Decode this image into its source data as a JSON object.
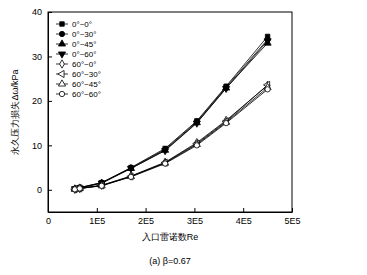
{
  "chart_data": {
    "type": "line",
    "title": "(a) β=0.67",
    "x_label": "入口雷诺数Re",
    "y_label": "永久压力损失Δω/kPa",
    "x": [
      55000,
      65000,
      110000,
      170000,
      240000,
      305000,
      365000,
      450000
    ],
    "xlim": [
      0,
      500000
    ],
    "xticks": [
      0,
      {
        "value": 100000,
        "label": "1E5"
      },
      {
        "value": 200000,
        "label": "2E5"
      },
      {
        "value": 300000,
        "label": "3E5"
      },
      {
        "value": 400000,
        "label": "4E5"
      },
      {
        "value": 500000,
        "label": "5E5"
      }
    ],
    "ylim": [
      -5,
      40
    ],
    "yticks": [
      0,
      10,
      20,
      30,
      40
    ],
    "grid": false,
    "legend": "upper left",
    "series": [
      {
        "name": "0°~0°",
        "color": "#000000",
        "marker": "filled-square",
        "values": [
          0.2,
          0.5,
          1.6,
          5.0,
          9.3,
          15.5,
          23.3,
          34.5
        ]
      },
      {
        "name": "0°~30°",
        "color": "#000000",
        "marker": "filled-circle",
        "values": [
          0.2,
          0.5,
          1.6,
          4.9,
          9.1,
          15.3,
          23.1,
          33.8
        ]
      },
      {
        "name": "0°~45°",
        "color": "#000000",
        "marker": "filled-triangle-up",
        "values": [
          0.2,
          0.4,
          1.5,
          4.8,
          8.9,
          15.1,
          22.9,
          33.0
        ]
      },
      {
        "name": "0°~60°",
        "color": "#000000",
        "marker": "filled-triangle-down",
        "values": [
          0.2,
          0.4,
          1.5,
          4.8,
          8.8,
          15.0,
          22.8,
          33.5
        ]
      },
      {
        "name": "60°~0°",
        "color": "#000000",
        "marker": "open-diamond",
        "values": [
          0.1,
          0.3,
          1.0,
          3.1,
          6.2,
          10.6,
          15.6,
          23.5
        ]
      },
      {
        "name": "60°~30°",
        "color": "#000000",
        "marker": "open-triangle-left",
        "values": [
          0.1,
          0.3,
          1.0,
          3.0,
          6.1,
          10.4,
          15.4,
          23.6
        ]
      },
      {
        "name": "60°~45°",
        "color": "#000000",
        "marker": "open-triangle-up",
        "values": [
          0.1,
          0.3,
          0.9,
          3.0,
          6.0,
          10.2,
          15.2,
          23.0
        ]
      },
      {
        "name": "60°~60°",
        "color": "#000000",
        "marker": "open-circle",
        "values": [
          0.1,
          0.3,
          0.9,
          2.9,
          5.9,
          10.0,
          15.0,
          22.6
        ]
      }
    ]
  }
}
